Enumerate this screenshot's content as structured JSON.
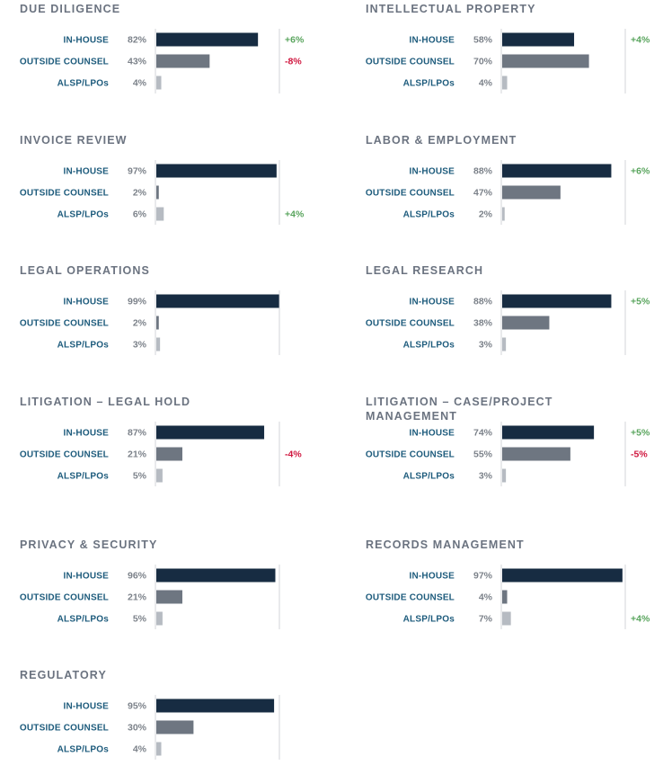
{
  "colors": {
    "in_house": "#172c42",
    "outside_counsel": "#6e7681",
    "alsp": "#b6bbc2",
    "positive": "#5aa55e",
    "negative": "#d0173f",
    "axis": "#d3d6da"
  },
  "chart_data": [
    {
      "type": "bar",
      "title": "DUE DILIGENCE",
      "categories": [
        "IN-HOUSE",
        "OUTSIDE COUNSEL",
        "ALSP/LPOs"
      ],
      "values": [
        82,
        43,
        4
      ],
      "value_labels": [
        "82%",
        "43%",
        "4%"
      ],
      "change_labels": [
        "+6%",
        "-8%",
        ""
      ],
      "xlim": [
        0,
        100
      ]
    },
    {
      "type": "bar",
      "title": "INTELLECTUAL PROPERTY",
      "categories": [
        "IN-HOUSE",
        "OUTSIDE COUNSEL",
        "ALSP/LPOs"
      ],
      "values": [
        58,
        70,
        4
      ],
      "value_labels": [
        "58%",
        "70%",
        "4%"
      ],
      "change_labels": [
        "+4%",
        "",
        ""
      ],
      "xlim": [
        0,
        100
      ]
    },
    {
      "type": "bar",
      "title": "INVOICE REVIEW",
      "categories": [
        "IN-HOUSE",
        "OUTSIDE COUNSEL",
        "ALSP/LPOs"
      ],
      "values": [
        97,
        2,
        6
      ],
      "value_labels": [
        "97%",
        "2%",
        "6%"
      ],
      "change_labels": [
        "",
        "",
        "+4%"
      ],
      "xlim": [
        0,
        100
      ]
    },
    {
      "type": "bar",
      "title": "LABOR & EMPLOYMENT",
      "categories": [
        "IN-HOUSE",
        "OUTSIDE COUNSEL",
        "ALSP/LPOs"
      ],
      "values": [
        88,
        47,
        2
      ],
      "value_labels": [
        "88%",
        "47%",
        "2%"
      ],
      "change_labels": [
        "+6%",
        "",
        ""
      ],
      "xlim": [
        0,
        100
      ]
    },
    {
      "type": "bar",
      "title": "LEGAL OPERATIONS",
      "categories": [
        "IN-HOUSE",
        "OUTSIDE COUNSEL",
        "ALSP/LPOs"
      ],
      "values": [
        99,
        2,
        3
      ],
      "value_labels": [
        "99%",
        "2%",
        "3%"
      ],
      "change_labels": [
        "",
        "",
        ""
      ],
      "xlim": [
        0,
        100
      ]
    },
    {
      "type": "bar",
      "title": "LEGAL RESEARCH",
      "categories": [
        "IN-HOUSE",
        "OUTSIDE COUNSEL",
        "ALSP/LPOs"
      ],
      "values": [
        88,
        38,
        3
      ],
      "value_labels": [
        "88%",
        "38%",
        "3%"
      ],
      "change_labels": [
        "+5%",
        "",
        ""
      ],
      "xlim": [
        0,
        100
      ]
    },
    {
      "type": "bar",
      "title": "LITIGATION – LEGAL HOLD",
      "categories": [
        "IN-HOUSE",
        "OUTSIDE COUNSEL",
        "ALSP/LPOs"
      ],
      "values": [
        87,
        21,
        5
      ],
      "value_labels": [
        "87%",
        "21%",
        "5%"
      ],
      "change_labels": [
        "",
        "-4%",
        ""
      ],
      "xlim": [
        0,
        100
      ]
    },
    {
      "type": "bar",
      "title": "LITIGATION – CASE/PROJECT MANAGEMENT",
      "title_lines": [
        "LITIGATION – CASE/PROJECT",
        "MANAGEMENT"
      ],
      "categories": [
        "IN-HOUSE",
        "OUTSIDE COUNSEL",
        "ALSP/LPOs"
      ],
      "values": [
        74,
        55,
        3
      ],
      "value_labels": [
        "74%",
        "55%",
        "3%"
      ],
      "change_labels": [
        "+5%",
        "-5%",
        ""
      ],
      "xlim": [
        0,
        100
      ]
    },
    {
      "type": "bar",
      "title": "PRIVACY & SECURITY",
      "categories": [
        "IN-HOUSE",
        "OUTSIDE COUNSEL",
        "ALSP/LPOs"
      ],
      "values": [
        96,
        21,
        5
      ],
      "value_labels": [
        "96%",
        "21%",
        "5%"
      ],
      "change_labels": [
        "",
        "",
        ""
      ],
      "xlim": [
        0,
        100
      ]
    },
    {
      "type": "bar",
      "title": "RECORDS MANAGEMENT",
      "categories": [
        "IN-HOUSE",
        "OUTSIDE COUNSEL",
        "ALSP/LPOs"
      ],
      "values": [
        97,
        4,
        7
      ],
      "value_labels": [
        "97%",
        "4%",
        "7%"
      ],
      "change_labels": [
        "",
        "",
        "+4%"
      ],
      "xlim": [
        0,
        100
      ]
    },
    {
      "type": "bar",
      "title": "REGULATORY",
      "categories": [
        "IN-HOUSE",
        "OUTSIDE COUNSEL",
        "ALSP/LPOs"
      ],
      "values": [
        95,
        30,
        4
      ],
      "value_labels": [
        "95%",
        "30%",
        "4%"
      ],
      "change_labels": [
        "",
        "",
        ""
      ],
      "xlim": [
        0,
        100
      ]
    }
  ]
}
